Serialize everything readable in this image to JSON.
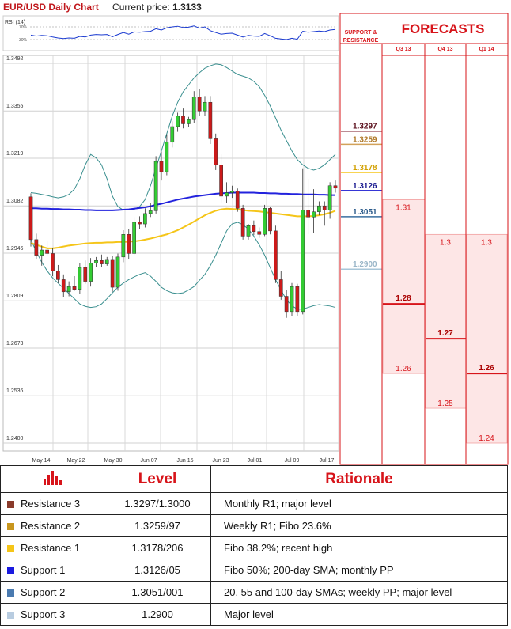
{
  "header": {
    "title": "EUR/USD Daily Chart",
    "price_label": "Current price:",
    "price_value": "1.3133"
  },
  "colors": {
    "accent_red": "#d7141a",
    "up_candle": "#33cc33",
    "down_candle": "#cc1a1a",
    "sma200": "#2222dd",
    "sma_yellow": "#f5c518",
    "bollinger": "#3a8f8f"
  },
  "forecast_panel": {
    "title": "FORECASTS",
    "sr_label_1": "SUPPORT &",
    "sr_label_2": "RESISTANCE",
    "columns": [
      "Q3 13",
      "Q4 13",
      "Q1 14"
    ],
    "levels": [
      {
        "text": "1.3297",
        "value": 1.3297,
        "color": "#7b1a2a",
        "text_color": "#5a0f1c"
      },
      {
        "text": "1.3259",
        "value": 1.3259,
        "color": "#d2a25a",
        "text_color": "#b07a2a"
      },
      {
        "text": "1.3178",
        "value": 1.3178,
        "color": "#f5c518",
        "text_color": "#d2a000"
      },
      {
        "text": "1.3126",
        "value": 1.3126,
        "color": "#1a1ad0",
        "text_color": "#1a1a90"
      },
      {
        "text": "1.3051",
        "value": 1.3051,
        "color": "#3a6fa0",
        "text_color": "#2a5a8a"
      },
      {
        "text": "1.2900",
        "value": 1.29,
        "color": "#a8c6d8",
        "text_color": "#9ab6c8"
      }
    ],
    "forecasts": [
      {
        "high": 1.31,
        "mid": 1.28,
        "low": 1.26
      },
      {
        "high": 1.3,
        "mid": 1.27,
        "low": 1.25
      },
      {
        "high": 1.3,
        "mid": 1.26,
        "low": 1.24
      }
    ]
  },
  "chart_data": {
    "type": "candlestick",
    "title": "EUR/USD Daily Chart",
    "ylim": [
      1.24,
      1.3492
    ],
    "yticks": [
      "1.3492",
      "1.3355",
      "1.3219",
      "1.3082",
      "1.2946",
      "1.2809",
      "1.2673",
      "1.2536",
      "1.2400"
    ],
    "xticks": [
      "May 14",
      "May 22",
      "May 30",
      "Jun 07",
      "Jun 15",
      "Jun 23",
      "Jul 01",
      "Jul 09",
      "Jul 17"
    ],
    "grid": true,
    "candles": [
      [
        1.3108,
        1.3118,
        1.2965,
        1.2985
      ],
      [
        1.2985,
        1.3002,
        1.293,
        1.294
      ],
      [
        1.294,
        1.2968,
        1.291,
        1.2955
      ],
      [
        1.2955,
        1.2982,
        1.2938,
        1.2945
      ],
      [
        1.2945,
        1.2962,
        1.288,
        1.2895
      ],
      [
        1.2895,
        1.2912,
        1.286,
        1.287
      ],
      [
        1.287,
        1.2885,
        1.282,
        1.2835
      ],
      [
        1.2835,
        1.2865,
        1.2822,
        1.285
      ],
      [
        1.285,
        1.288,
        1.2838,
        1.2842
      ],
      [
        1.2842,
        1.2918,
        1.283,
        1.2905
      ],
      [
        1.2905,
        1.2925,
        1.2858,
        1.2865
      ],
      [
        1.2865,
        1.2932,
        1.285,
        1.2918
      ],
      [
        1.2918,
        1.2935,
        1.2905,
        1.2925
      ],
      [
        1.2925,
        1.2942,
        1.2905,
        1.2915
      ],
      [
        1.2915,
        1.2935,
        1.291,
        1.2928
      ],
      [
        1.2928,
        1.2938,
        1.2835,
        1.2848
      ],
      [
        1.2848,
        1.2945,
        1.2838,
        1.2935
      ],
      [
        1.2935,
        1.3012,
        1.292,
        1.3
      ],
      [
        1.3,
        1.3015,
        1.293,
        1.2945
      ],
      [
        1.2945,
        1.305,
        1.294,
        1.3035
      ],
      [
        1.3035,
        1.3052,
        1.3015,
        1.303
      ],
      [
        1.303,
        1.3075,
        1.302,
        1.306
      ],
      [
        1.306,
        1.309,
        1.305,
        1.3068
      ],
      [
        1.3068,
        1.3225,
        1.306,
        1.321
      ],
      [
        1.321,
        1.3238,
        1.3155,
        1.318
      ],
      [
        1.318,
        1.3288,
        1.317,
        1.3265
      ],
      [
        1.3265,
        1.3325,
        1.325,
        1.331
      ],
      [
        1.331,
        1.335,
        1.3295,
        1.334
      ],
      [
        1.334,
        1.3362,
        1.3305,
        1.3318
      ],
      [
        1.3318,
        1.3338,
        1.331,
        1.333
      ],
      [
        1.333,
        1.3412,
        1.332,
        1.3395
      ],
      [
        1.3395,
        1.3418,
        1.334,
        1.3355
      ],
      [
        1.3355,
        1.3398,
        1.334,
        1.338
      ],
      [
        1.338,
        1.3398,
        1.326,
        1.3275
      ],
      [
        1.3275,
        1.329,
        1.3185,
        1.32
      ],
      [
        1.32,
        1.323,
        1.309,
        1.311
      ],
      [
        1.311,
        1.315,
        1.309,
        1.312
      ],
      [
        1.312,
        1.314,
        1.3105,
        1.3125
      ],
      [
        1.3125,
        1.3132,
        1.3065,
        1.3075
      ],
      [
        1.3075,
        1.3085,
        1.2985,
        1.2995
      ],
      [
        1.2995,
        1.303,
        1.2985,
        1.3025
      ],
      [
        1.3025,
        1.304,
        1.2998,
        1.3008
      ],
      [
        1.3008,
        1.302,
        1.299,
        1.3
      ],
      [
        1.3,
        1.3085,
        1.2995,
        1.3075
      ],
      [
        1.3075,
        1.308,
        1.3,
        1.301
      ],
      [
        1.301,
        1.3025,
        1.286,
        1.287
      ],
      [
        1.287,
        1.2895,
        1.2812,
        1.2822
      ],
      [
        1.2822,
        1.284,
        1.276,
        1.2778
      ],
      [
        1.2778,
        1.286,
        1.2765,
        1.285
      ],
      [
        1.285,
        1.2858,
        1.2765,
        1.2778
      ],
      [
        1.2778,
        1.319,
        1.277,
        1.307
      ],
      [
        1.307,
        1.316,
        1.3,
        1.305
      ],
      [
        1.305,
        1.313,
        1.3005,
        1.3065
      ],
      [
        1.3065,
        1.3095,
        1.3055,
        1.3082
      ],
      [
        1.3082,
        1.3095,
        1.3025,
        1.307
      ],
      [
        1.307,
        1.315,
        1.3045,
        1.314
      ],
      [
        1.314,
        1.3155,
        1.312,
        1.3133
      ]
    ],
    "sma200": [
      1.3075,
      1.3075,
      1.3074,
      1.3074,
      1.3073,
      1.3073,
      1.3072,
      1.3072,
      1.3071,
      1.3071,
      1.307,
      1.307,
      1.3069,
      1.3069,
      1.3069,
      1.3069,
      1.307,
      1.3071,
      1.3072,
      1.3074,
      1.3076,
      1.3078,
      1.3081,
      1.3085,
      1.3088,
      1.3092,
      1.3096,
      1.31,
      1.3103,
      1.3106,
      1.3109,
      1.3111,
      1.3113,
      1.3115,
      1.3117,
      1.3118,
      1.3119,
      1.312,
      1.312,
      1.312,
      1.312,
      1.312,
      1.3119,
      1.3119,
      1.3118,
      1.3118,
      1.3117,
      1.3117,
      1.3116,
      1.3116,
      1.3115,
      1.3115,
      1.3115,
      1.3114,
      1.3114,
      1.3113,
      1.3113
    ],
    "sma_yellow": [
      1.2975,
      1.297,
      1.2965,
      1.296,
      1.296,
      1.2962,
      1.2965,
      1.2968,
      1.297,
      1.2972,
      1.2974,
      1.2975,
      1.2976,
      1.2976,
      1.2977,
      1.2977,
      1.2978,
      1.2978,
      1.2979,
      1.298,
      1.2982,
      1.2985,
      1.2988,
      1.2992,
      1.2996,
      1.3,
      1.3006,
      1.3012,
      1.302,
      1.3028,
      1.3037,
      1.3046,
      1.3055,
      1.3062,
      1.3068,
      1.3072,
      1.3074,
      1.3073,
      1.3072,
      1.307,
      1.3068,
      1.3067,
      1.3066,
      1.3064,
      1.3062,
      1.306,
      1.3058,
      1.3056,
      1.3054,
      1.3052,
      1.3052,
      1.3052,
      1.3053,
      1.3055,
      1.3058,
      1.3062,
      1.3068
    ],
    "bb_upper": [
      1.312,
      1.3118,
      1.3115,
      1.3112,
      1.3108,
      1.3105,
      1.3108,
      1.3115,
      1.313,
      1.316,
      1.32,
      1.323,
      1.322,
      1.32,
      1.316,
      1.311,
      1.308,
      1.307,
      1.307,
      1.3072,
      1.308,
      1.31,
      1.314,
      1.319,
      1.324,
      1.329,
      1.334,
      1.338,
      1.341,
      1.343,
      1.345,
      1.3465,
      1.3478,
      1.3485,
      1.349,
      1.3488,
      1.348,
      1.347,
      1.346,
      1.3455,
      1.345,
      1.344,
      1.3425,
      1.34,
      1.337,
      1.3335,
      1.33,
      1.327,
      1.324,
      1.3215,
      1.32,
      1.319,
      1.3185,
      1.319,
      1.32,
      1.3215,
      1.323
    ],
    "bb_lower": [
      1.2985,
      1.295,
      1.292,
      1.2895,
      1.2875,
      1.286,
      1.2845,
      1.283,
      1.2815,
      1.28,
      1.2793,
      1.279,
      1.2792,
      1.28,
      1.2815,
      1.2832,
      1.2848,
      1.286,
      1.287,
      1.2878,
      1.2885,
      1.289,
      1.288,
      1.2865,
      1.2848,
      1.2838,
      1.2832,
      1.283,
      1.2832,
      1.284,
      1.285,
      1.2868,
      1.2885,
      1.291,
      1.294,
      1.2975,
      1.301,
      1.303,
      1.3035,
      1.3028,
      1.3015,
      1.2995,
      1.297,
      1.294,
      1.2905,
      1.287,
      1.284,
      1.2812,
      1.2795,
      1.2785,
      1.2785,
      1.279,
      1.2795,
      1.2798,
      1.2796,
      1.2794,
      1.279
    ],
    "rsi_levels": [
      "70%",
      "30%"
    ],
    "rsi_label": "RSI (14)",
    "rsi": [
      44,
      41,
      43,
      42,
      38,
      35,
      33,
      35,
      34,
      40,
      38,
      44,
      46,
      45,
      46,
      39,
      46,
      52,
      47,
      54,
      53,
      55,
      56,
      64,
      60,
      67,
      70,
      72,
      68,
      69,
      73,
      66,
      70,
      58,
      52,
      47,
      49,
      50,
      44,
      38,
      43,
      41,
      40,
      49,
      42,
      34,
      32,
      30,
      34,
      31,
      56,
      53,
      55,
      57,
      55,
      60,
      62
    ]
  },
  "table": {
    "header_level": "Level",
    "header_rationale": "Rationale",
    "rows": [
      {
        "label": "Resistance 3",
        "level": "1.3297/1.3000",
        "rationale": "Monthly R1; major level",
        "color": "#8a3a2a"
      },
      {
        "label": "Resistance 2",
        "level": "1.3259/97",
        "rationale": "Weekly R1; Fibo 23.6%",
        "color": "#c8961e"
      },
      {
        "label": "Resistance 1",
        "level": "1.3178/206",
        "rationale": "Fibo 38.2%; recent high",
        "color": "#f5c518"
      },
      {
        "label": "Support 1",
        "level": "1.3126/05",
        "rationale": "Fibo 50%; 200-day SMA; monthly PP",
        "color": "#1a1ae0"
      },
      {
        "label": "Support 2",
        "level": "1.3051/001",
        "rationale": "20, 55 and 100-day SMAs; weekly PP; major level",
        "color": "#4a7ab0"
      },
      {
        "label": "Support 3",
        "level": "1.2900",
        "rationale": "Major level",
        "color": "#b8cce0"
      }
    ]
  }
}
